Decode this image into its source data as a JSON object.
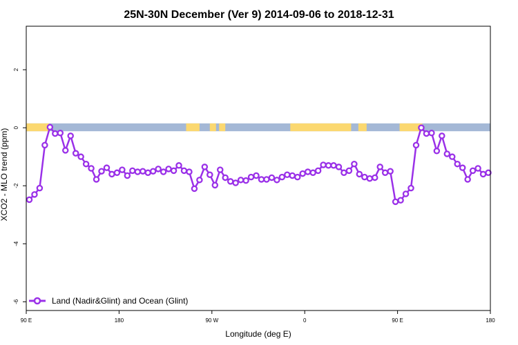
{
  "chart_data": {
    "type": "line",
    "title": "25N-30N December (Ver 9)   2014-09-06 to 2018-12-31",
    "xlabel": "Longitude (deg E)",
    "ylabel": "XCO2 - MLO trend (ppm)",
    "xlim": [
      90,
      540
    ],
    "ylim": [
      -6.3,
      3.5
    ],
    "x_ticks": [
      {
        "value": 90,
        "label": "90 E"
      },
      {
        "value": 180,
        "label": "180"
      },
      {
        "value": 270,
        "label": "90 W"
      },
      {
        "value": 360,
        "label": "0"
      },
      {
        "value": 450,
        "label": "90 E"
      },
      {
        "value": 540,
        "label": "180"
      }
    ],
    "y_ticks": [
      {
        "value": 2,
        "label": "2"
      },
      {
        "value": 0,
        "label": "0"
      },
      {
        "value": -2,
        "label": "-2"
      },
      {
        "value": -4,
        "label": "-4"
      },
      {
        "value": -6,
        "label": "-6"
      }
    ],
    "grid": false,
    "legend_position": "bottom-left",
    "colors": {
      "series": "#9a30e8",
      "ocean": "#a4b8d6",
      "land": "#fbd870"
    },
    "series": [
      {
        "name": "Land (Nadir&Glint) and Ocean (Glint)",
        "x": [
          93,
          98,
          103,
          108,
          113,
          118,
          123,
          128,
          133,
          138,
          143,
          148,
          153,
          158,
          163,
          168,
          173,
          178,
          183,
          188,
          193,
          198,
          203,
          208,
          213,
          218,
          223,
          228,
          233,
          238,
          243,
          248,
          253,
          258,
          263,
          268,
          273,
          278,
          283,
          288,
          293,
          298,
          303,
          308,
          313,
          318,
          323,
          328,
          333,
          338,
          343,
          348,
          353,
          358,
          363,
          368,
          373,
          378,
          383,
          388,
          393,
          398,
          403,
          408,
          413,
          418,
          423,
          428,
          433,
          438,
          443,
          448,
          453,
          458,
          463,
          468,
          473,
          478,
          483,
          488,
          493,
          498,
          503,
          508,
          513,
          518,
          523,
          528,
          533,
          538
        ],
        "y": [
          -2.48,
          -2.3,
          -2.08,
          -0.6,
          0.02,
          -0.2,
          -0.18,
          -0.78,
          -0.28,
          -0.88,
          -1.0,
          -1.25,
          -1.4,
          -1.78,
          -1.5,
          -1.38,
          -1.6,
          -1.55,
          -1.45,
          -1.65,
          -1.48,
          -1.52,
          -1.5,
          -1.55,
          -1.5,
          -1.42,
          -1.52,
          -1.42,
          -1.48,
          -1.3,
          -1.48,
          -1.52,
          -2.1,
          -1.8,
          -1.35,
          -1.62,
          -1.98,
          -1.45,
          -1.72,
          -1.85,
          -1.9,
          -1.8,
          -1.82,
          -1.7,
          -1.65,
          -1.78,
          -1.78,
          -1.72,
          -1.8,
          -1.7,
          -1.62,
          -1.65,
          -1.7,
          -1.58,
          -1.52,
          -1.55,
          -1.48,
          -1.28,
          -1.3,
          -1.3,
          -1.35,
          -1.55,
          -1.48,
          -1.25,
          -1.6,
          -1.7,
          -1.75,
          -1.72,
          -1.35,
          -1.55,
          -1.5,
          -2.55,
          -2.5,
          -2.28,
          -2.08,
          -0.6,
          0.0,
          -0.2,
          -0.18,
          -0.8,
          -0.28,
          -0.9,
          -1.0,
          -1.25,
          -1.38,
          -1.78,
          -1.48,
          -1.4,
          -1.6,
          -1.55
        ]
      }
    ]
  }
}
